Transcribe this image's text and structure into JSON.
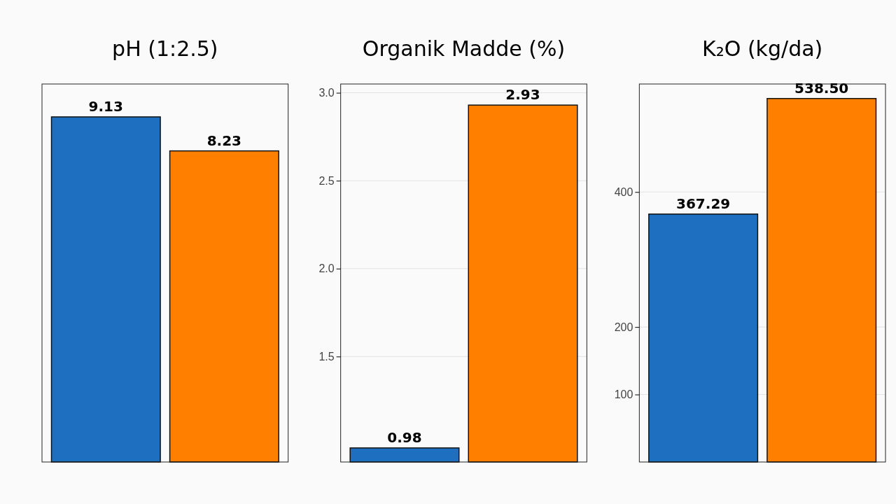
{
  "chart_data": [
    {
      "type": "bar",
      "title": "pH (1:2.5)",
      "categories": [
        null,
        null
      ],
      "values": [
        9.13,
        8.23
      ],
      "colors": [
        "#1f6fc0",
        "#ff8000"
      ],
      "ylim": [
        0,
        10
      ],
      "data_labels": true,
      "tick_labels": false
    },
    {
      "type": "bar",
      "title": "Organik Madde (%)",
      "categories": [
        null,
        null
      ],
      "values": [
        0.98,
        2.93
      ],
      "colors": [
        "#1f6fc0",
        "#ff8000"
      ],
      "ylim": [
        0.9,
        3.05
      ],
      "yticks": [
        1.5,
        {
          "value": 2,
          "label": "2.0"
        },
        2.5,
        {
          "value": 3,
          "label": "3.0"
        }
      ],
      "grid": "y",
      "data_labels": true,
      "tick_labels": "y"
    },
    {
      "type": "bar",
      "title": "K₂O (kg/da)",
      "categories": [
        null,
        null
      ],
      "values": [
        367.29,
        538.5
      ],
      "value_labels": [
        "367.29",
        "538.50"
      ],
      "colors": [
        "#1f6fc0",
        "#ff8000"
      ],
      "ylim": [
        0,
        560
      ],
      "yticks": [
        100,
        200,
        400
      ],
      "grid": "y",
      "tick_labels": "y"
    }
  ]
}
